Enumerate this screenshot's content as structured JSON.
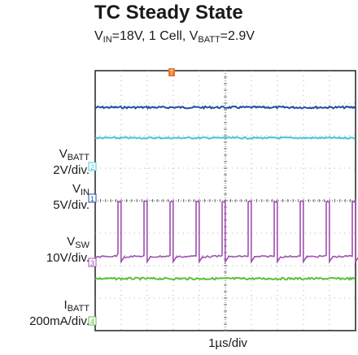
{
  "title": "TC Steady State",
  "subtitle": {
    "vin_sym": "V",
    "vin_sub": "IN",
    "vin_val": "=18V, 1 Cell, ",
    "vbatt_sym": "V",
    "vbatt_sub": "BATT",
    "vbatt_val": "=2.9V"
  },
  "chart_data": {
    "type": "line",
    "title": "TC Steady State",
    "xlabel": "1µs/div",
    "grid": true,
    "divisions_x": 10,
    "divisions_y": 8,
    "channels": [
      {
        "name": "VIN",
        "label_sym": "V",
        "label_sub": "IN",
        "scale": "5V/div.",
        "marker": "1",
        "color": "#1f4fa0",
        "level_div": 6.87
      },
      {
        "name": "VBATT",
        "label_sym": "V",
        "label_sub": "BATT",
        "scale": "2V/div.",
        "marker": "2",
        "color": "#48c4d8",
        "level_div": 5.93
      },
      {
        "name": "VSW",
        "label_sym": "V",
        "label_sub": "SW",
        "scale": "10V/div.",
        "marker": "3",
        "color": "#a050b0",
        "low_div": 2.27,
        "high_div": 3.97,
        "duty": 0.12,
        "period_div": 1.0
      },
      {
        "name": "IBATT",
        "label_sym": "I",
        "label_sub": "BATT",
        "scale": "200mA/div.",
        "marker": "4",
        "color": "#5cbf3c",
        "level_div": 1.6
      }
    ],
    "trigger_marker": "T"
  }
}
